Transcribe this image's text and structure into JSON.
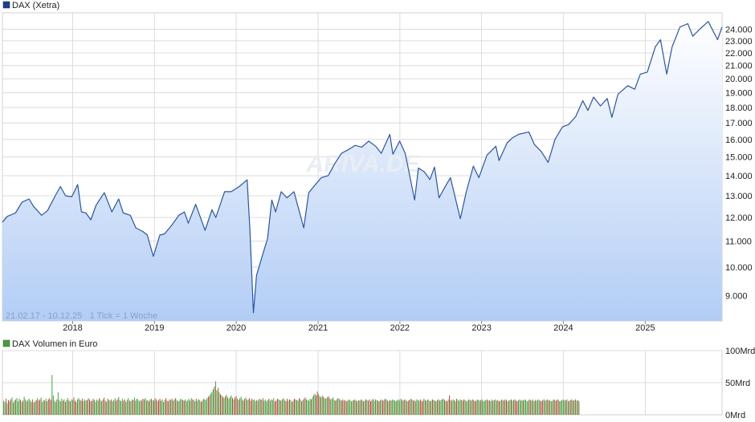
{
  "chart_data": [
    {
      "type": "area",
      "legend": "DAX (Xetra)",
      "series_color": "#2a55a8",
      "legend_color": "#1d3f8f",
      "date_range_note": "21.02.17 - 10.12.25   1 Tick = 1 Woche",
      "watermark": "ARIVA.DE",
      "x_tick_labels": [
        "2018",
        "2019",
        "2020",
        "2021",
        "2022",
        "2023",
        "2024",
        "2025"
      ],
      "y_scale": "log",
      "y_tick_values": [
        9000,
        10000,
        11000,
        12000,
        13000,
        14000,
        15000,
        16000,
        17000,
        18000,
        19000,
        20000,
        21000,
        22000,
        23000,
        24000
      ],
      "y_tick_labels": [
        "9.000",
        "10.000",
        "11.000",
        "12.000",
        "13.000",
        "14.000",
        "15.000",
        "16.000",
        "17.000",
        "18.000",
        "19.000",
        "20.000",
        "21.000",
        "22.000",
        "23.000",
        "24.000"
      ],
      "x_range": [
        "2017-02-21",
        "2025-12-10"
      ],
      "y_range": [
        8200,
        25500
      ],
      "grid": true,
      "legend_position": "top-left",
      "points": [
        [
          "2017-02-21",
          11800
        ],
        [
          "2017-03-15",
          12050
        ],
        [
          "2017-04-20",
          12200
        ],
        [
          "2017-05-20",
          12700
        ],
        [
          "2017-06-20",
          12850
        ],
        [
          "2017-07-10",
          12500
        ],
        [
          "2017-08-15",
          12100
        ],
        [
          "2017-09-10",
          12300
        ],
        [
          "2017-10-15",
          13000
        ],
        [
          "2017-11-07",
          13450
        ],
        [
          "2017-11-30",
          13000
        ],
        [
          "2017-12-28",
          12950
        ],
        [
          "2018-01-23",
          13550
        ],
        [
          "2018-02-09",
          12250
        ],
        [
          "2018-03-01",
          12200
        ],
        [
          "2018-03-23",
          11900
        ],
        [
          "2018-04-15",
          12550
        ],
        [
          "2018-05-22",
          13150
        ],
        [
          "2018-06-25",
          12250
        ],
        [
          "2018-07-25",
          12850
        ],
        [
          "2018-08-15",
          12200
        ],
        [
          "2018-09-15",
          12100
        ],
        [
          "2018-10-10",
          11550
        ],
        [
          "2018-11-10",
          11400
        ],
        [
          "2018-11-30",
          11250
        ],
        [
          "2018-12-27",
          10400
        ],
        [
          "2019-01-25",
          11250
        ],
        [
          "2019-02-15",
          11300
        ],
        [
          "2019-03-18",
          11650
        ],
        [
          "2019-04-20",
          12100
        ],
        [
          "2019-05-15",
          12250
        ],
        [
          "2019-06-01",
          11750
        ],
        [
          "2019-07-04",
          12600
        ],
        [
          "2019-08-15",
          11450
        ],
        [
          "2019-09-15",
          12350
        ],
        [
          "2019-10-02",
          12000
        ],
        [
          "2019-11-10",
          13200
        ],
        [
          "2019-12-10",
          13200
        ],
        [
          "2020-01-15",
          13450
        ],
        [
          "2020-02-19",
          13790
        ],
        [
          "2020-03-02",
          11500
        ],
        [
          "2020-03-18",
          8450
        ],
        [
          "2020-04-01",
          9700
        ],
        [
          "2020-05-01",
          10550
        ],
        [
          "2020-05-20",
          11100
        ],
        [
          "2020-06-08",
          12800
        ],
        [
          "2020-06-25",
          12250
        ],
        [
          "2020-07-20",
          13200
        ],
        [
          "2020-08-15",
          12900
        ],
        [
          "2020-09-15",
          13200
        ],
        [
          "2020-10-29",
          11550
        ],
        [
          "2020-11-20",
          13150
        ],
        [
          "2020-12-20",
          13550
        ],
        [
          "2021-01-15",
          13900
        ],
        [
          "2021-02-15",
          14000
        ],
        [
          "2021-03-15",
          14600
        ],
        [
          "2021-04-15",
          15200
        ],
        [
          "2021-05-15",
          15400
        ],
        [
          "2021-06-15",
          15650
        ],
        [
          "2021-07-15",
          15550
        ],
        [
          "2021-08-15",
          15900
        ],
        [
          "2021-09-15",
          15600
        ],
        [
          "2021-10-10",
          15200
        ],
        [
          "2021-11-17",
          16300
        ],
        [
          "2021-12-01",
          15150
        ],
        [
          "2021-12-31",
          15900
        ],
        [
          "2022-01-25",
          15200
        ],
        [
          "2022-03-08",
          12800
        ],
        [
          "2022-03-25",
          14400
        ],
        [
          "2022-04-20",
          14200
        ],
        [
          "2022-05-15",
          13800
        ],
        [
          "2022-06-05",
          14450
        ],
        [
          "2022-06-25",
          12900
        ],
        [
          "2022-07-20",
          13400
        ],
        [
          "2022-08-15",
          13900
        ],
        [
          "2022-09-28",
          11950
        ],
        [
          "2022-10-25",
          13200
        ],
        [
          "2022-11-25",
          14500
        ],
        [
          "2022-12-20",
          13900
        ],
        [
          "2023-01-25",
          15100
        ],
        [
          "2023-03-06",
          15600
        ],
        [
          "2023-03-20",
          14800
        ],
        [
          "2023-04-25",
          15800
        ],
        [
          "2023-05-20",
          16100
        ],
        [
          "2023-06-15",
          16300
        ],
        [
          "2023-07-31",
          16450
        ],
        [
          "2023-08-25",
          15700
        ],
        [
          "2023-09-25",
          15300
        ],
        [
          "2023-10-25",
          14700
        ],
        [
          "2023-11-25",
          16000
        ],
        [
          "2023-12-28",
          16750
        ],
        [
          "2024-01-25",
          16900
        ],
        [
          "2024-02-25",
          17400
        ],
        [
          "2024-03-28",
          18450
        ],
        [
          "2024-04-20",
          17800
        ],
        [
          "2024-05-15",
          18700
        ],
        [
          "2024-06-15",
          18100
        ],
        [
          "2024-07-15",
          18600
        ],
        [
          "2024-08-05",
          17350
        ],
        [
          "2024-09-01",
          18900
        ],
        [
          "2024-10-15",
          19500
        ],
        [
          "2024-11-15",
          19250
        ],
        [
          "2024-12-10",
          20350
        ],
        [
          "2025-01-10",
          20500
        ],
        [
          "2025-02-15",
          22500
        ],
        [
          "2025-03-10",
          23100
        ],
        [
          "2025-04-07",
          20350
        ],
        [
          "2025-05-01",
          22500
        ],
        [
          "2025-06-05",
          24200
        ],
        [
          "2025-07-10",
          24500
        ],
        [
          "2025-08-01",
          23400
        ],
        [
          "2025-09-01",
          24000
        ],
        [
          "2025-10-09",
          24700
        ],
        [
          "2025-11-20",
          23100
        ],
        [
          "2025-12-10",
          24200
        ]
      ]
    },
    {
      "type": "bar",
      "legend": "DAX Volumen in Euro",
      "legend_color": "#4a9a3a",
      "up_color": "#2e9e2e",
      "down_color": "#c83232",
      "y_tick_labels": [
        "100Mrd",
        "50Mrd",
        "0Mrd"
      ],
      "y_range_mrd": [
        0,
        100
      ],
      "grid": true,
      "values_mrd": [
        22,
        20,
        25,
        18,
        23,
        21,
        24,
        27,
        19,
        22,
        24,
        26,
        21,
        25,
        23,
        20,
        22,
        28,
        24,
        21,
        23,
        25,
        22,
        20,
        24,
        19,
        21,
        23,
        26,
        22,
        24,
        27,
        20,
        23,
        22,
        25,
        21,
        24,
        26,
        23,
        62,
        30,
        22,
        20,
        24,
        35,
        23,
        21,
        25,
        22,
        24,
        20,
        23,
        26,
        22,
        21,
        24,
        23,
        27,
        22,
        20,
        24,
        26,
        23,
        22,
        25,
        21,
        24,
        22,
        23,
        26,
        24,
        21,
        22,
        25,
        23,
        20,
        24,
        22,
        26,
        23,
        21,
        24,
        27,
        22,
        20,
        25,
        23,
        22,
        24,
        21,
        23,
        26,
        22,
        24,
        28,
        23,
        21,
        25,
        22,
        24,
        20,
        23,
        26,
        22,
        21,
        24,
        23,
        27,
        22,
        25,
        24,
        21,
        23,
        22,
        25,
        24,
        26,
        22,
        23,
        21,
        24,
        25,
        23,
        22,
        26,
        24,
        21,
        23,
        25,
        22,
        24,
        20,
        23,
        26,
        22,
        21,
        24,
        23,
        25,
        22,
        24,
        26,
        23,
        21,
        22,
        25,
        24,
        23,
        22,
        24,
        21,
        23,
        25,
        22,
        26,
        24,
        23,
        21,
        25,
        22,
        24,
        23,
        20,
        22,
        25,
        24,
        23,
        26,
        28,
        30,
        33,
        36,
        40,
        44,
        52,
        38,
        42,
        35,
        32,
        30,
        28,
        26,
        29,
        31,
        27,
        25,
        28,
        30,
        26,
        24,
        27,
        29,
        25,
        23,
        26,
        28,
        24,
        22,
        25,
        27,
        23,
        24,
        26,
        22,
        25,
        23,
        24,
        21,
        23,
        22,
        25,
        24,
        23,
        26,
        22,
        24,
        21,
        23,
        25,
        22,
        24,
        23,
        26,
        21,
        22,
        25,
        24,
        23,
        22,
        24,
        26,
        23,
        21,
        25,
        22,
        24,
        23,
        20,
        22,
        25,
        24,
        23,
        22,
        26,
        24,
        21,
        23,
        25,
        27,
        24,
        23,
        22,
        25,
        24,
        28,
        31,
        33,
        30,
        36,
        32,
        29,
        27,
        30,
        28,
        26,
        25,
        27,
        29,
        26,
        24,
        25,
        27,
        23,
        22,
        24,
        26,
        25,
        23,
        22,
        24,
        22,
        23,
        21,
        22,
        24,
        23,
        21,
        22,
        23,
        24,
        22,
        21,
        23,
        22,
        24,
        23,
        21,
        22,
        24,
        23,
        22,
        24,
        21,
        23,
        25,
        22,
        24,
        23,
        22,
        21,
        23,
        24,
        22,
        23,
        25,
        24,
        22,
        21,
        23,
        22,
        24,
        23,
        22,
        21,
        23,
        24,
        22,
        25,
        23,
        22,
        24,
        23,
        21,
        22,
        23,
        25,
        24,
        22,
        23,
        21,
        24,
        23,
        22,
        24,
        21,
        22,
        25,
        23,
        22,
        24,
        23,
        21,
        22,
        24,
        23,
        22,
        21,
        23,
        24,
        22,
        23,
        24,
        25,
        23,
        22,
        21,
        24,
        30,
        23,
        22,
        24,
        23,
        21,
        25,
        23,
        22,
        24,
        23,
        22,
        24,
        23,
        21,
        22,
        24,
        23,
        22,
        24,
        23,
        21,
        22,
        24,
        23,
        22,
        23,
        24,
        21,
        22,
        23,
        24,
        22,
        23,
        21,
        24,
        22,
        23,
        24,
        22,
        23,
        21,
        22,
        24,
        23,
        22,
        24,
        23,
        21,
        22,
        23,
        24,
        22,
        23,
        24,
        22,
        21,
        23,
        24,
        22,
        23,
        22,
        24,
        23,
        21,
        22,
        24,
        23,
        22,
        24,
        21,
        23,
        22,
        24,
        23,
        22,
        21,
        23,
        24,
        22,
        23,
        24,
        22,
        23,
        21,
        22,
        24,
        23,
        22,
        24,
        23,
        21,
        22,
        23,
        24,
        22,
        23,
        24,
        21,
        22,
        23,
        24,
        22,
        23,
        24,
        22,
        23,
        21
      ]
    }
  ]
}
